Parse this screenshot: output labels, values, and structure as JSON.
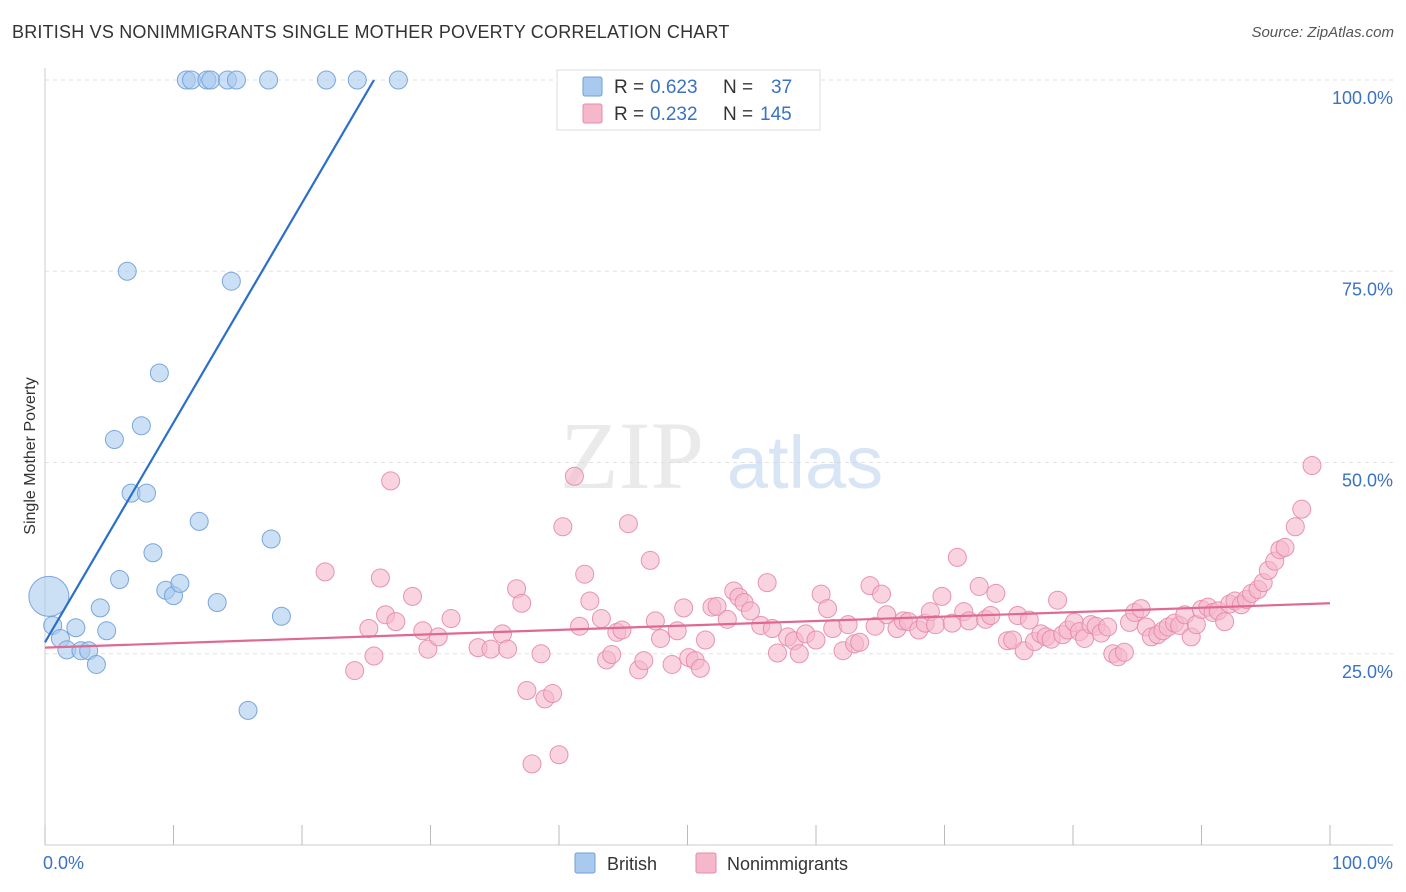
{
  "title": "BRITISH VS NONIMMIGRANTS SINGLE MOTHER POVERTY CORRELATION CHART",
  "source": "Source: ZipAtlas.com",
  "watermark": {
    "zip": "ZIP",
    "atlas": "atlas"
  },
  "colors": {
    "british": "#a9c9ef",
    "british_stroke": "#6f9fd8",
    "british_line": "#2a6fc9",
    "nonimmigrants": "#f5b8cb",
    "nonimmigrants_stroke": "#e58aa8",
    "nonimmigrants_line": "#e06990",
    "axis_label": "#3a72c4",
    "grid": "#e2e2e2"
  },
  "legend_top": {
    "rows": [
      {
        "series": "British",
        "r_label": "R = ",
        "r_value": "0.623",
        "n_label": "N = ",
        "n_value": "37"
      },
      {
        "series": "Nonimmigrants",
        "r_label": "R = ",
        "r_value": "0.232",
        "n_label": "N = ",
        "n_value": "145"
      }
    ]
  },
  "chart_data": {
    "type": "scatter",
    "title": "BRITISH VS NONIMMIGRANTS SINGLE MOTHER POVERTY CORRELATION CHART",
    "xlabel": "",
    "ylabel": "Single Mother Poverty",
    "xlim": [
      0,
      100
    ],
    "ylim": [
      0,
      100
    ],
    "x_tick_labels": [
      "0.0%",
      "100.0%"
    ],
    "y_tick_labels": [
      {
        "value": 25,
        "label": "25.0%"
      },
      {
        "value": 50,
        "label": "50.0%"
      },
      {
        "value": 75,
        "label": "75.0%"
      },
      {
        "value": 100,
        "label": "100.0%"
      }
    ],
    "grid": true,
    "legend": "bottom-center",
    "series": [
      {
        "name": "British",
        "trend": {
          "x": [
            0,
            25.6
          ],
          "y": [
            26.5,
            100
          ]
        },
        "points": [
          {
            "x": 0.3,
            "y": 32.5,
            "big": true
          },
          {
            "x": 0.6,
            "y": 28.7
          },
          {
            "x": 1.2,
            "y": 27.0
          },
          {
            "x": 1.7,
            "y": 25.5
          },
          {
            "x": 2.4,
            "y": 28.4
          },
          {
            "x": 2.8,
            "y": 25.4
          },
          {
            "x": 3.4,
            "y": 25.4
          },
          {
            "x": 4.0,
            "y": 23.6
          },
          {
            "x": 4.3,
            "y": 31.0
          },
          {
            "x": 4.8,
            "y": 28.0
          },
          {
            "x": 5.4,
            "y": 53.0
          },
          {
            "x": 5.8,
            "y": 34.7
          },
          {
            "x": 6.4,
            "y": 75.0
          },
          {
            "x": 6.7,
            "y": 46.0
          },
          {
            "x": 7.5,
            "y": 54.8
          },
          {
            "x": 7.9,
            "y": 46.0
          },
          {
            "x": 8.4,
            "y": 38.2
          },
          {
            "x": 8.9,
            "y": 61.7
          },
          {
            "x": 9.4,
            "y": 33.3
          },
          {
            "x": 10.0,
            "y": 32.6
          },
          {
            "x": 10.5,
            "y": 34.2
          },
          {
            "x": 11.0,
            "y": 100
          },
          {
            "x": 11.4,
            "y": 100
          },
          {
            "x": 12.0,
            "y": 42.3
          },
          {
            "x": 12.6,
            "y": 100
          },
          {
            "x": 12.9,
            "y": 100
          },
          {
            "x": 13.4,
            "y": 31.7
          },
          {
            "x": 14.2,
            "y": 100
          },
          {
            "x": 14.5,
            "y": 73.7
          },
          {
            "x": 14.9,
            "y": 100
          },
          {
            "x": 15.8,
            "y": 17.6
          },
          {
            "x": 17.4,
            "y": 100
          },
          {
            "x": 17.6,
            "y": 40.0
          },
          {
            "x": 18.4,
            "y": 29.9
          },
          {
            "x": 21.9,
            "y": 100
          },
          {
            "x": 24.3,
            "y": 100
          },
          {
            "x": 27.5,
            "y": 100
          }
        ]
      },
      {
        "name": "Nonimmigrants",
        "trend": {
          "x": [
            0,
            100
          ],
          "y": [
            25.8,
            31.6
          ]
        },
        "points": [
          {
            "x": 21.8,
            "y": 35.7
          },
          {
            "x": 24.1,
            "y": 22.8
          },
          {
            "x": 25.2,
            "y": 28.3
          },
          {
            "x": 25.6,
            "y": 24.7
          },
          {
            "x": 26.1,
            "y": 34.9
          },
          {
            "x": 26.5,
            "y": 30.1
          },
          {
            "x": 26.9,
            "y": 47.6
          },
          {
            "x": 27.3,
            "y": 29.2
          },
          {
            "x": 28.6,
            "y": 32.5
          },
          {
            "x": 29.4,
            "y": 28.0
          },
          {
            "x": 29.8,
            "y": 25.6
          },
          {
            "x": 30.6,
            "y": 27.2
          },
          {
            "x": 31.6,
            "y": 29.6
          },
          {
            "x": 33.7,
            "y": 25.8
          },
          {
            "x": 34.7,
            "y": 25.6
          },
          {
            "x": 35.6,
            "y": 27.6
          },
          {
            "x": 36.0,
            "y": 25.6
          },
          {
            "x": 36.7,
            "y": 33.5
          },
          {
            "x": 37.1,
            "y": 31.6
          },
          {
            "x": 37.5,
            "y": 20.2
          },
          {
            "x": 38.6,
            "y": 25.0
          },
          {
            "x": 38.9,
            "y": 19.1
          },
          {
            "x": 39.5,
            "y": 19.8
          },
          {
            "x": 40.0,
            "y": 11.8
          },
          {
            "x": 40.3,
            "y": 41.6
          },
          {
            "x": 41.2,
            "y": 48.2
          },
          {
            "x": 41.6,
            "y": 28.6
          },
          {
            "x": 42.0,
            "y": 35.4
          },
          {
            "x": 42.4,
            "y": 31.9
          },
          {
            "x": 43.3,
            "y": 29.6
          },
          {
            "x": 43.7,
            "y": 24.2
          },
          {
            "x": 44.1,
            "y": 24.9
          },
          {
            "x": 44.5,
            "y": 27.8
          },
          {
            "x": 44.9,
            "y": 28.1
          },
          {
            "x": 45.4,
            "y": 42.0
          },
          {
            "x": 46.2,
            "y": 22.9
          },
          {
            "x": 46.6,
            "y": 24.1
          },
          {
            "x": 47.1,
            "y": 37.2
          },
          {
            "x": 47.5,
            "y": 29.3
          },
          {
            "x": 47.9,
            "y": 27.0
          },
          {
            "x": 48.8,
            "y": 23.6
          },
          {
            "x": 49.2,
            "y": 28.0
          },
          {
            "x": 49.7,
            "y": 31.0
          },
          {
            "x": 50.1,
            "y": 24.5
          },
          {
            "x": 50.6,
            "y": 24.1
          },
          {
            "x": 51.0,
            "y": 23.1
          },
          {
            "x": 51.4,
            "y": 26.8
          },
          {
            "x": 51.9,
            "y": 31.1
          },
          {
            "x": 52.3,
            "y": 31.2
          },
          {
            "x": 53.1,
            "y": 29.5
          },
          {
            "x": 53.6,
            "y": 33.2
          },
          {
            "x": 54.0,
            "y": 32.4
          },
          {
            "x": 54.4,
            "y": 31.7
          },
          {
            "x": 54.9,
            "y": 30.6
          },
          {
            "x": 55.7,
            "y": 28.7
          },
          {
            "x": 56.2,
            "y": 34.3
          },
          {
            "x": 56.6,
            "y": 28.3
          },
          {
            "x": 57.0,
            "y": 25.1
          },
          {
            "x": 57.8,
            "y": 27.2
          },
          {
            "x": 58.3,
            "y": 26.7
          },
          {
            "x": 58.7,
            "y": 25.0
          },
          {
            "x": 59.2,
            "y": 27.6
          },
          {
            "x": 60.0,
            "y": 26.8
          },
          {
            "x": 60.4,
            "y": 32.8
          },
          {
            "x": 60.9,
            "y": 30.9
          },
          {
            "x": 61.3,
            "y": 28.3
          },
          {
            "x": 62.1,
            "y": 25.4
          },
          {
            "x": 62.5,
            "y": 28.8
          },
          {
            "x": 63.0,
            "y": 26.3
          },
          {
            "x": 63.4,
            "y": 26.5
          },
          {
            "x": 64.2,
            "y": 33.9
          },
          {
            "x": 64.6,
            "y": 28.6
          },
          {
            "x": 65.1,
            "y": 32.8
          },
          {
            "x": 65.5,
            "y": 30.1
          },
          {
            "x": 66.3,
            "y": 28.3
          },
          {
            "x": 66.8,
            "y": 29.3
          },
          {
            "x": 67.2,
            "y": 29.2
          },
          {
            "x": 68.0,
            "y": 28.1
          },
          {
            "x": 68.5,
            "y": 29.0
          },
          {
            "x": 68.9,
            "y": 30.5
          },
          {
            "x": 69.3,
            "y": 28.8
          },
          {
            "x": 69.8,
            "y": 32.5
          },
          {
            "x": 70.6,
            "y": 29.0
          },
          {
            "x": 71.0,
            "y": 37.6
          },
          {
            "x": 71.5,
            "y": 30.5
          },
          {
            "x": 71.9,
            "y": 29.3
          },
          {
            "x": 72.7,
            "y": 33.8
          },
          {
            "x": 73.2,
            "y": 29.5
          },
          {
            "x": 73.6,
            "y": 30.0
          },
          {
            "x": 74.0,
            "y": 32.9
          },
          {
            "x": 74.9,
            "y": 26.7
          },
          {
            "x": 75.3,
            "y": 26.8
          },
          {
            "x": 75.7,
            "y": 30.0
          },
          {
            "x": 76.2,
            "y": 25.4
          },
          {
            "x": 76.6,
            "y": 29.4
          },
          {
            "x": 77.0,
            "y": 26.6
          },
          {
            "x": 77.5,
            "y": 27.6
          },
          {
            "x": 77.9,
            "y": 27.2
          },
          {
            "x": 78.3,
            "y": 26.9
          },
          {
            "x": 78.8,
            "y": 32.0
          },
          {
            "x": 79.2,
            "y": 27.5
          },
          {
            "x": 79.6,
            "y": 28.1
          },
          {
            "x": 80.1,
            "y": 29.1
          },
          {
            "x": 80.5,
            "y": 27.9
          },
          {
            "x": 80.9,
            "y": 27.0
          },
          {
            "x": 81.4,
            "y": 28.8
          },
          {
            "x": 81.8,
            "y": 28.6
          },
          {
            "x": 82.2,
            "y": 27.7
          },
          {
            "x": 82.7,
            "y": 28.5
          },
          {
            "x": 83.1,
            "y": 25.0
          },
          {
            "x": 83.5,
            "y": 24.6
          },
          {
            "x": 84.0,
            "y": 25.2
          },
          {
            "x": 84.4,
            "y": 29.1
          },
          {
            "x": 84.8,
            "y": 30.4
          },
          {
            "x": 85.3,
            "y": 30.9
          },
          {
            "x": 85.7,
            "y": 28.5
          },
          {
            "x": 86.1,
            "y": 27.2
          },
          {
            "x": 86.6,
            "y": 27.5
          },
          {
            "x": 87.0,
            "y": 28.0
          },
          {
            "x": 87.4,
            "y": 28.5
          },
          {
            "x": 87.9,
            "y": 29.0
          },
          {
            "x": 88.3,
            "y": 28.7
          },
          {
            "x": 88.7,
            "y": 30.1
          },
          {
            "x": 89.2,
            "y": 27.2
          },
          {
            "x": 89.6,
            "y": 28.8
          },
          {
            "x": 90.0,
            "y": 30.8
          },
          {
            "x": 90.5,
            "y": 31.1
          },
          {
            "x": 90.9,
            "y": 30.4
          },
          {
            "x": 91.3,
            "y": 30.6
          },
          {
            "x": 91.8,
            "y": 29.2
          },
          {
            "x": 92.2,
            "y": 31.5
          },
          {
            "x": 92.6,
            "y": 31.9
          },
          {
            "x": 93.1,
            "y": 31.4
          },
          {
            "x": 93.5,
            "y": 32.1
          },
          {
            "x": 93.9,
            "y": 32.9
          },
          {
            "x": 94.4,
            "y": 33.4
          },
          {
            "x": 94.8,
            "y": 34.3
          },
          {
            "x": 95.2,
            "y": 35.9
          },
          {
            "x": 95.7,
            "y": 37.1
          },
          {
            "x": 96.1,
            "y": 38.6
          },
          {
            "x": 96.5,
            "y": 38.9
          },
          {
            "x": 97.3,
            "y": 41.6
          },
          {
            "x": 97.8,
            "y": 43.9
          },
          {
            "x": 98.6,
            "y": 49.6
          },
          {
            "x": 37.9,
            "y": 10.6
          }
        ]
      }
    ]
  }
}
